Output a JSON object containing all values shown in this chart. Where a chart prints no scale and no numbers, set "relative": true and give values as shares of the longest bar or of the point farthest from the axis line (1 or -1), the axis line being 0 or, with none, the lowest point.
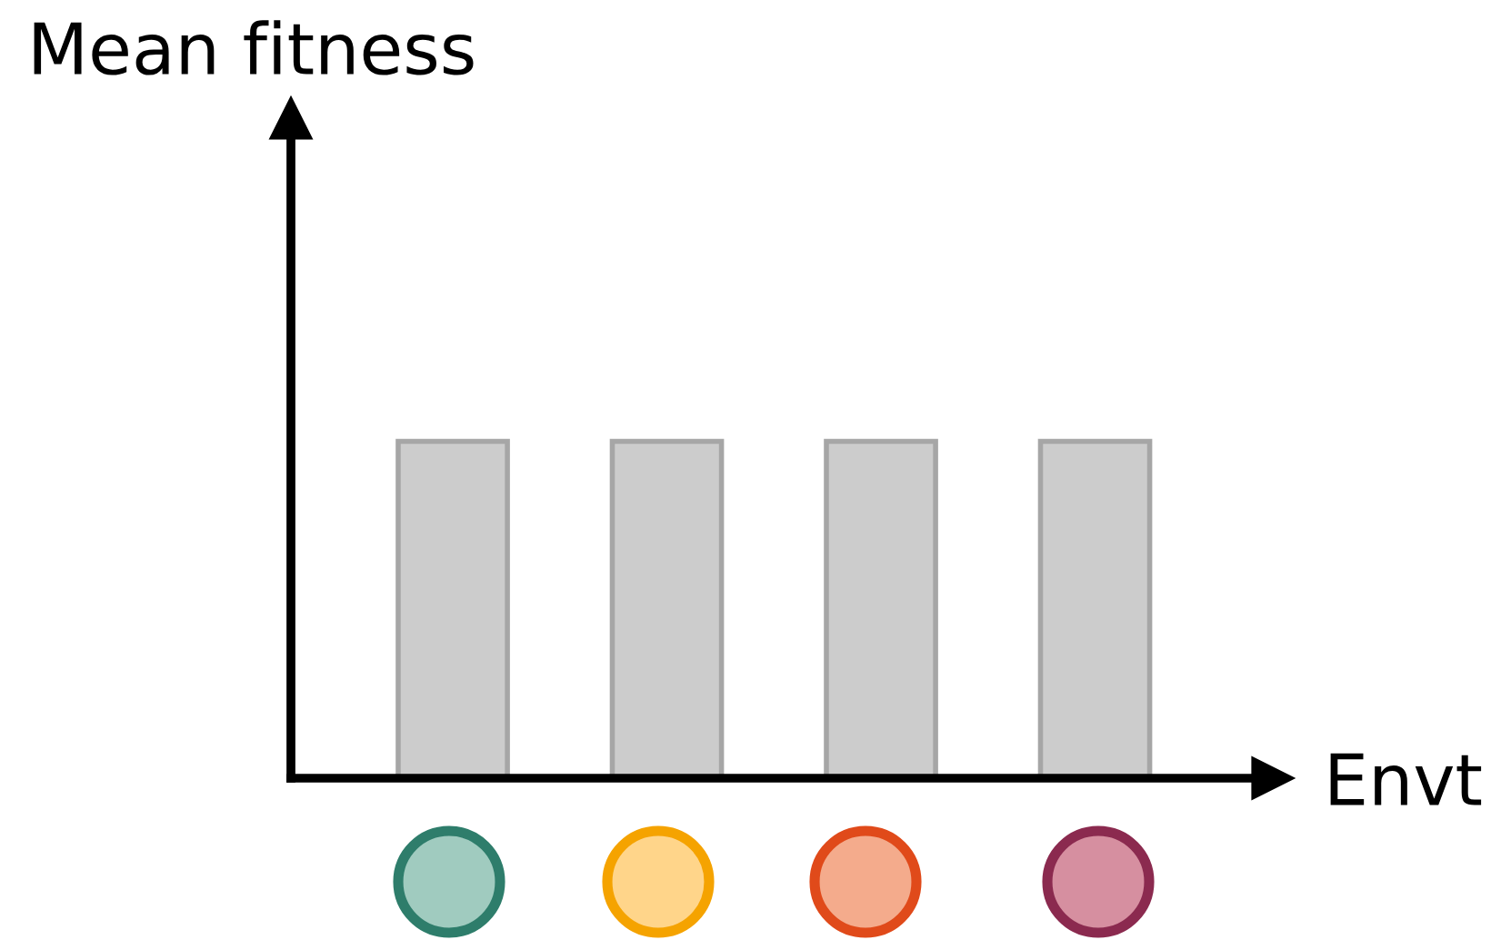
{
  "chart_data": {
    "type": "bar",
    "relative": true,
    "xlabel": "Envt",
    "annotations": [
      "Mean fitness"
    ],
    "categories": [
      null,
      null,
      null,
      null
    ],
    "values": [
      1,
      1,
      1,
      1
    ],
    "color": "#cccccc",
    "grid": false,
    "legend": false
  }
}
